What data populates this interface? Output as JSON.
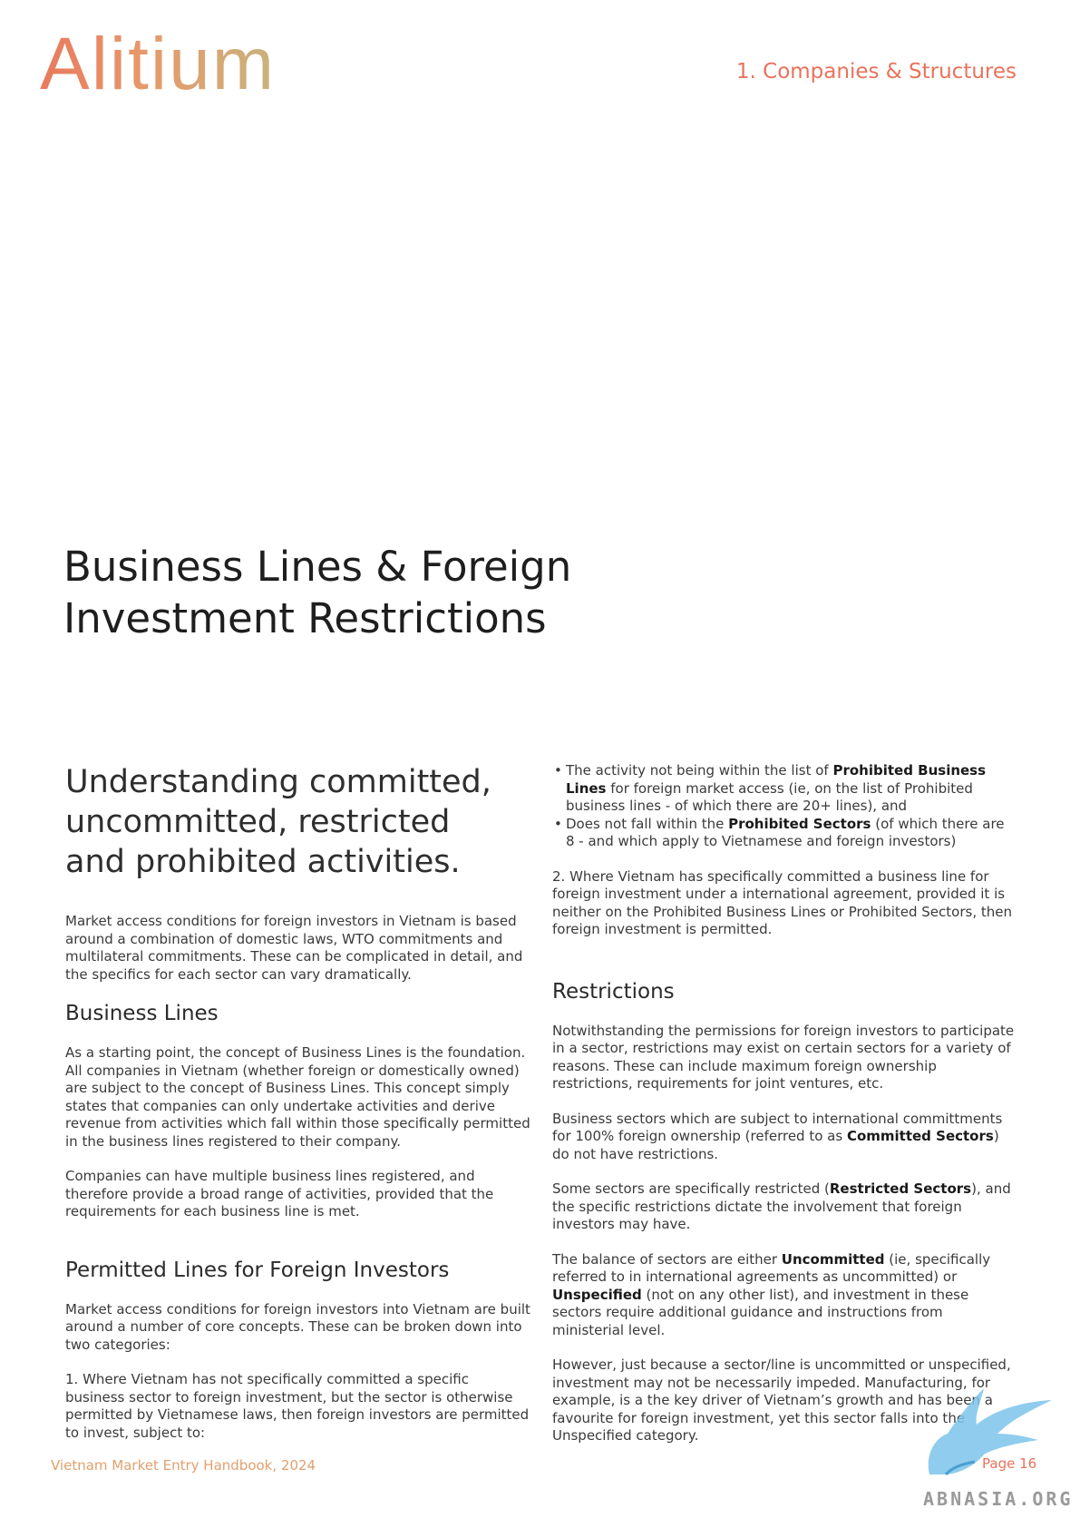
{
  "header": {
    "logo": "Alitium",
    "section": "1. Companies & Structures"
  },
  "title": {
    "line1": "Business Lines & Foreign",
    "line2": "Investment Restrictions"
  },
  "left": {
    "subtitle": {
      "line1": "Understanding committed,",
      "line2": "uncommitted, restricted",
      "line3": "and prohibited activities."
    },
    "intro": "Market access conditions for foreign investors in Vietnam is based around a combination of domestic laws, WTO commitments and multilateral commitments. These can be complicated in detail, and the specifics for each sector can vary dramatically.",
    "business_lines": {
      "heading": "Business Lines",
      "p1": "As a starting point, the concept of Business Lines is the foundation. All companies in Vietnam (whether foreign or domestically owned) are subject to the concept of Business Lines. This concept simply states that companies can only undertake activities and derive revenue from activities which fall within those specifically permitted in the business lines registered to their company.",
      "p2": "Companies can have multiple business lines registered, and therefore provide a broad range of activities, provided that the requirements for each business line is met."
    },
    "permitted": {
      "heading": "Permitted Lines for Foreign Investors",
      "p1": "Market access conditions for foreign investors into Vietnam are built around a number of core concepts. These can be broken down into two categories:",
      "p2": "1. Where Vietnam has not specifically committed a specific business sector to foreign investment, but the sector is otherwise permitted by Vietnamese laws, then foreign investors are permitted to invest, subject to:"
    }
  },
  "right": {
    "bullet1": {
      "pre": "The activity not being within the list of ",
      "bold": "Prohibited Business Lines",
      "post": " for foreign market access (ie, on the list of Prohibited business lines - of which there are 20+ lines), and"
    },
    "bullet2": {
      "pre": "Does not fall within the ",
      "bold": "Prohibited Sectors",
      "post": " (of which there are 8 - and which apply to Vietnamese and foreign investors)"
    },
    "p2": "2. Where Vietnam has specifically committed a business line for foreign investment under a international agreement, provided it is neither on the Prohibited Business Lines or Prohibited Sectors, then foreign investment is permitted.",
    "restrictions": {
      "heading": "Restrictions",
      "p1": "Notwithstanding the permissions for foreign investors to participate in a sector, restrictions may exist on certain sectors for a variety of reasons. These can include maximum foreign ownership restrictions, requirements for joint ventures, etc.",
      "p2": {
        "pre": "Business sectors which are subject to international committments for 100% foreign ownership (referred to as ",
        "bold": "Committed Sectors",
        "post": ") do not have restrictions."
      },
      "p3": {
        "pre": "Some sectors are specifically restricted (",
        "bold": "Restricted Sectors",
        "post": "), and the specific restrictions dictate the involvement that foreign investors may have."
      },
      "p4": {
        "pre": "The balance of sectors are either ",
        "bold1": "Uncommitted",
        "mid": " (ie, specifically referred to in international agreements as uncommitted) or ",
        "bold2": "Unspecified",
        "post": " (not on any other list), and investment in these sectors require additional guidance and instructions from ministerial level."
      },
      "p5": "However, just because a sector/line is uncommitted or unspecified, investment may not be necessarily impeded. Manufacturing, for example, is a the key driver of Vietnam’s growth and has been a favourite for foreign investment, yet this sector falls into the Unspecified category."
    }
  },
  "footer": {
    "left": "Vietnam Market Entry Handbook, 2024",
    "right": "Page 16"
  },
  "watermark": {
    "text": "ABNASIA.ORG",
    "icon": "bird-icon",
    "color": "#7cc3ea"
  }
}
